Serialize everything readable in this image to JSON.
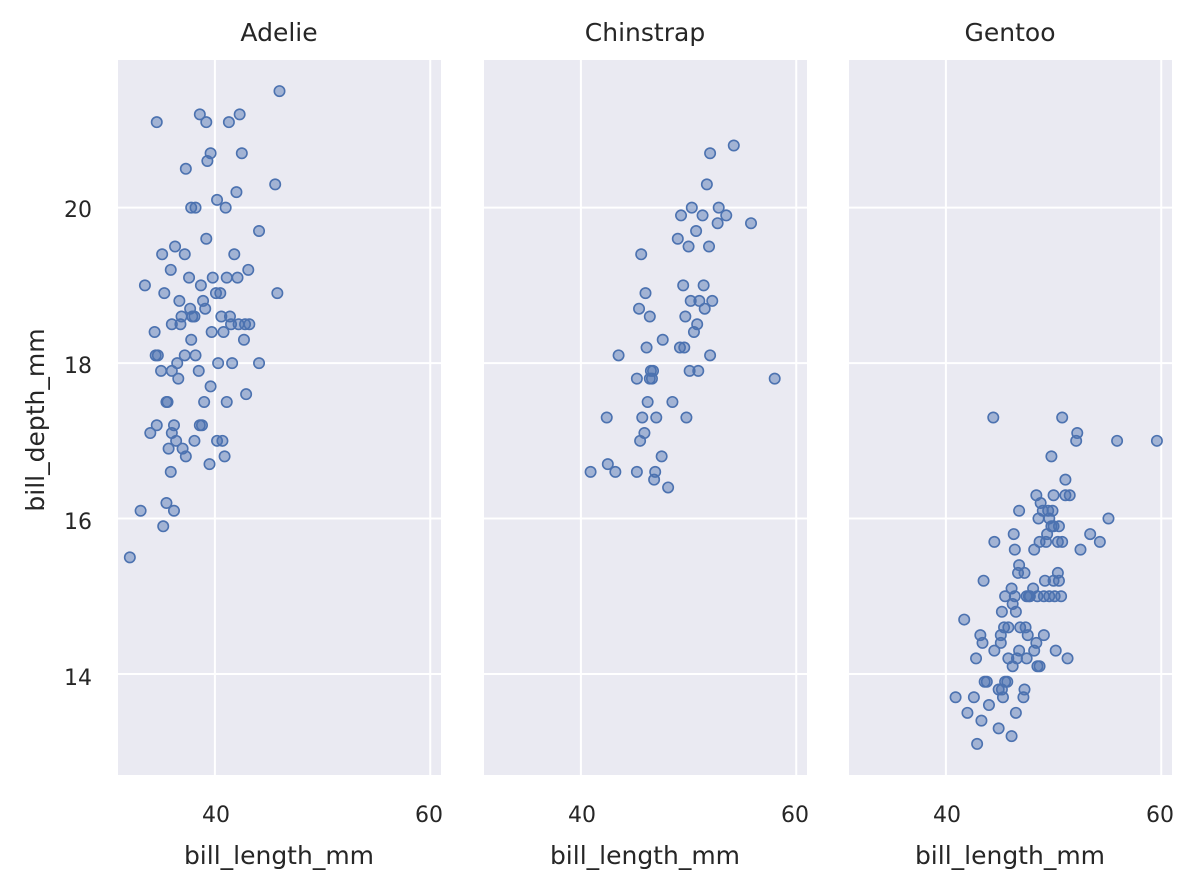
{
  "chart_data": {
    "type": "scatter",
    "x_label": "bill_length_mm",
    "y_label": "bill_depth_mm",
    "xlim": [
      31,
      61
    ],
    "ylim": [
      12.7,
      21.9
    ],
    "x_ticks": [
      40,
      60
    ],
    "y_ticks": [
      14,
      16,
      18,
      20
    ],
    "x_tick_labels": [
      "40",
      "60"
    ],
    "y_tick_labels": [
      "14",
      "16",
      "18",
      "20"
    ],
    "grid": true,
    "marker_color": "#4c72b0",
    "panels": [
      {
        "title": "Adelie",
        "points": [
          [
            32.1,
            15.5
          ],
          [
            33.1,
            16.1
          ],
          [
            33.5,
            19.0
          ],
          [
            34.0,
            17.1
          ],
          [
            34.4,
            18.4
          ],
          [
            34.5,
            18.1
          ],
          [
            34.6,
            21.1
          ],
          [
            34.6,
            17.2
          ],
          [
            34.7,
            18.1
          ],
          [
            35.0,
            17.9
          ],
          [
            35.1,
            19.4
          ],
          [
            35.2,
            15.9
          ],
          [
            35.3,
            18.9
          ],
          [
            35.5,
            16.2
          ],
          [
            35.5,
            17.5
          ],
          [
            35.6,
            17.5
          ],
          [
            35.7,
            16.9
          ],
          [
            35.9,
            19.2
          ],
          [
            35.9,
            16.6
          ],
          [
            36.0,
            17.9
          ],
          [
            36.0,
            18.5
          ],
          [
            36.0,
            17.1
          ],
          [
            36.2,
            17.2
          ],
          [
            36.2,
            16.1
          ],
          [
            36.3,
            19.5
          ],
          [
            36.4,
            17.0
          ],
          [
            36.5,
            18.0
          ],
          [
            36.6,
            17.8
          ],
          [
            36.7,
            18.8
          ],
          [
            36.8,
            18.5
          ],
          [
            36.9,
            18.6
          ],
          [
            37.0,
            16.9
          ],
          [
            37.2,
            18.1
          ],
          [
            37.2,
            19.4
          ],
          [
            37.3,
            20.5
          ],
          [
            37.3,
            16.8
          ],
          [
            37.6,
            19.1
          ],
          [
            37.7,
            18.7
          ],
          [
            37.8,
            18.3
          ],
          [
            37.8,
            20.0
          ],
          [
            37.9,
            18.6
          ],
          [
            38.1,
            18.6
          ],
          [
            38.1,
            17.0
          ],
          [
            38.2,
            18.1
          ],
          [
            38.2,
            20.0
          ],
          [
            38.5,
            17.9
          ],
          [
            38.6,
            21.2
          ],
          [
            38.6,
            17.2
          ],
          [
            38.7,
            19.0
          ],
          [
            38.8,
            17.2
          ],
          [
            38.9,
            18.8
          ],
          [
            39.0,
            17.5
          ],
          [
            39.1,
            18.7
          ],
          [
            39.2,
            19.6
          ],
          [
            39.2,
            21.1
          ],
          [
            39.3,
            20.6
          ],
          [
            39.5,
            16.7
          ],
          [
            39.6,
            17.7
          ],
          [
            39.6,
            20.7
          ],
          [
            39.7,
            18.4
          ],
          [
            39.8,
            19.1
          ],
          [
            40.1,
            18.9
          ],
          [
            40.2,
            17.0
          ],
          [
            40.2,
            20.1
          ],
          [
            40.3,
            18.0
          ],
          [
            40.5,
            18.9
          ],
          [
            40.6,
            18.6
          ],
          [
            40.7,
            17.0
          ],
          [
            40.8,
            18.4
          ],
          [
            40.9,
            16.8
          ],
          [
            41.0,
            20.0
          ],
          [
            41.1,
            17.5
          ],
          [
            41.1,
            19.1
          ],
          [
            41.3,
            21.1
          ],
          [
            41.4,
            18.6
          ],
          [
            41.5,
            18.5
          ],
          [
            41.6,
            18.0
          ],
          [
            41.8,
            19.4
          ],
          [
            42.0,
            20.2
          ],
          [
            42.1,
            19.1
          ],
          [
            42.2,
            18.5
          ],
          [
            42.3,
            21.2
          ],
          [
            42.5,
            20.7
          ],
          [
            42.7,
            18.3
          ],
          [
            42.8,
            18.5
          ],
          [
            42.9,
            17.6
          ],
          [
            43.1,
            19.2
          ],
          [
            43.2,
            18.5
          ],
          [
            44.1,
            18.0
          ],
          [
            44.1,
            19.7
          ],
          [
            45.6,
            20.3
          ],
          [
            45.8,
            18.9
          ],
          [
            46.0,
            21.5
          ]
        ]
      },
      {
        "title": "Chinstrap",
        "points": [
          [
            40.9,
            16.6
          ],
          [
            42.4,
            17.3
          ],
          [
            42.5,
            16.7
          ],
          [
            43.2,
            16.6
          ],
          [
            43.5,
            18.1
          ],
          [
            45.2,
            16.6
          ],
          [
            45.2,
            17.8
          ],
          [
            45.4,
            18.7
          ],
          [
            45.5,
            17.0
          ],
          [
            45.6,
            19.4
          ],
          [
            45.7,
            17.3
          ],
          [
            45.9,
            17.1
          ],
          [
            46.0,
            18.9
          ],
          [
            46.1,
            18.2
          ],
          [
            46.2,
            17.5
          ],
          [
            46.4,
            18.6
          ],
          [
            46.4,
            17.8
          ],
          [
            46.5,
            17.9
          ],
          [
            46.6,
            17.8
          ],
          [
            46.7,
            17.9
          ],
          [
            46.8,
            16.5
          ],
          [
            46.9,
            16.6
          ],
          [
            47.0,
            17.3
          ],
          [
            47.5,
            16.8
          ],
          [
            47.6,
            18.3
          ],
          [
            48.1,
            16.4
          ],
          [
            48.5,
            17.5
          ],
          [
            49.0,
            19.6
          ],
          [
            49.2,
            18.2
          ],
          [
            49.3,
            19.9
          ],
          [
            49.5,
            19.0
          ],
          [
            49.6,
            18.2
          ],
          [
            49.7,
            18.6
          ],
          [
            49.8,
            17.3
          ],
          [
            50.0,
            19.5
          ],
          [
            50.1,
            17.9
          ],
          [
            50.2,
            18.8
          ],
          [
            50.3,
            20.0
          ],
          [
            50.5,
            18.4
          ],
          [
            50.7,
            19.7
          ],
          [
            50.8,
            18.5
          ],
          [
            50.9,
            17.9
          ],
          [
            51.0,
            18.8
          ],
          [
            51.3,
            19.9
          ],
          [
            51.4,
            19.0
          ],
          [
            51.5,
            18.7
          ],
          [
            51.7,
            20.3
          ],
          [
            51.9,
            19.5
          ],
          [
            52.0,
            18.1
          ],
          [
            52.0,
            20.7
          ],
          [
            52.2,
            18.8
          ],
          [
            52.7,
            19.8
          ],
          [
            52.8,
            20.0
          ],
          [
            53.5,
            19.9
          ],
          [
            54.2,
            20.8
          ],
          [
            55.8,
            19.8
          ],
          [
            58.0,
            17.8
          ]
        ]
      },
      {
        "title": "Gentoo",
        "points": [
          [
            40.9,
            13.7
          ],
          [
            41.7,
            14.7
          ],
          [
            42.0,
            13.5
          ],
          [
            42.6,
            13.7
          ],
          [
            42.8,
            14.2
          ],
          [
            42.9,
            13.1
          ],
          [
            43.2,
            14.5
          ],
          [
            43.3,
            13.4
          ],
          [
            43.4,
            14.4
          ],
          [
            43.5,
            15.2
          ],
          [
            43.6,
            13.9
          ],
          [
            43.8,
            13.9
          ],
          [
            44.0,
            13.6
          ],
          [
            44.4,
            17.3
          ],
          [
            44.5,
            14.3
          ],
          [
            44.5,
            15.7
          ],
          [
            44.9,
            13.8
          ],
          [
            44.9,
            13.3
          ],
          [
            45.1,
            14.5
          ],
          [
            45.1,
            14.4
          ],
          [
            45.2,
            13.8
          ],
          [
            45.2,
            14.8
          ],
          [
            45.3,
            13.7
          ],
          [
            45.4,
            14.6
          ],
          [
            45.5,
            13.9
          ],
          [
            45.5,
            15.0
          ],
          [
            45.7,
            13.9
          ],
          [
            45.8,
            14.6
          ],
          [
            45.8,
            14.2
          ],
          [
            46.1,
            13.2
          ],
          [
            46.1,
            15.1
          ],
          [
            46.2,
            14.1
          ],
          [
            46.2,
            14.9
          ],
          [
            46.3,
            15.8
          ],
          [
            46.4,
            15.6
          ],
          [
            46.4,
            15.0
          ],
          [
            46.5,
            13.5
          ],
          [
            46.5,
            14.8
          ],
          [
            46.6,
            14.2
          ],
          [
            46.7,
            15.3
          ],
          [
            46.8,
            14.3
          ],
          [
            46.8,
            15.4
          ],
          [
            46.8,
            16.1
          ],
          [
            46.9,
            14.6
          ],
          [
            47.2,
            13.7
          ],
          [
            47.3,
            13.8
          ],
          [
            47.3,
            15.3
          ],
          [
            47.4,
            14.6
          ],
          [
            47.5,
            14.2
          ],
          [
            47.5,
            15.0
          ],
          [
            47.6,
            14.5
          ],
          [
            47.7,
            15.0
          ],
          [
            47.8,
            15.0
          ],
          [
            48.1,
            15.1
          ],
          [
            48.2,
            14.3
          ],
          [
            48.2,
            15.6
          ],
          [
            48.4,
            14.4
          ],
          [
            48.4,
            16.3
          ],
          [
            48.5,
            14.1
          ],
          [
            48.5,
            15.0
          ],
          [
            48.6,
            16.0
          ],
          [
            48.7,
            14.1
          ],
          [
            48.7,
            15.7
          ],
          [
            48.8,
            16.2
          ],
          [
            49.0,
            16.1
          ],
          [
            49.1,
            14.5
          ],
          [
            49.1,
            15.0
          ],
          [
            49.2,
            15.2
          ],
          [
            49.3,
            15.7
          ],
          [
            49.4,
            15.8
          ],
          [
            49.5,
            16.1
          ],
          [
            49.6,
            15.0
          ],
          [
            49.6,
            16.0
          ],
          [
            49.8,
            15.9
          ],
          [
            49.8,
            16.8
          ],
          [
            49.9,
            16.1
          ],
          [
            50.0,
            15.2
          ],
          [
            50.0,
            15.9
          ],
          [
            50.0,
            16.3
          ],
          [
            50.1,
            15.0
          ],
          [
            50.2,
            14.3
          ],
          [
            50.4,
            15.3
          ],
          [
            50.4,
            15.7
          ],
          [
            50.5,
            15.2
          ],
          [
            50.5,
            15.9
          ],
          [
            50.7,
            15.0
          ],
          [
            50.8,
            15.7
          ],
          [
            50.8,
            17.3
          ],
          [
            51.1,
            16.5
          ],
          [
            51.1,
            16.3
          ],
          [
            51.3,
            14.2
          ],
          [
            51.5,
            16.3
          ],
          [
            52.1,
            17.0
          ],
          [
            52.2,
            17.1
          ],
          [
            52.5,
            15.6
          ],
          [
            53.4,
            15.8
          ],
          [
            54.3,
            15.7
          ],
          [
            55.1,
            16.0
          ],
          [
            55.9,
            17.0
          ],
          [
            59.6,
            17.0
          ]
        ]
      }
    ]
  }
}
